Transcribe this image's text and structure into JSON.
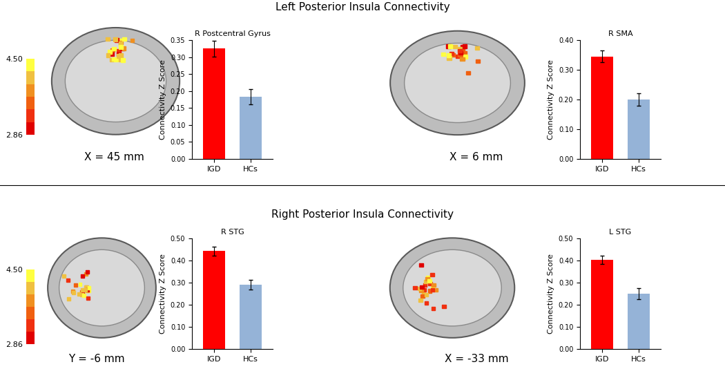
{
  "chart_data": [
    {
      "type": "bar",
      "title": "R Postcentral Gyrus",
      "categories": [
        "IGD",
        "HCs"
      ],
      "values": [
        0.325,
        0.183
      ],
      "errors": [
        0.023,
        0.022
      ],
      "colors": [
        "#ff0000",
        "#95b3d7"
      ],
      "y_label": "Connectivity Z Score",
      "ylim": [
        0,
        0.35
      ],
      "yticks": [
        {
          "value": 0,
          "label": "0.00"
        },
        {
          "value": 0.05,
          "label": "0.05"
        },
        {
          "value": 0.1,
          "label": "0.10"
        },
        {
          "value": 0.15,
          "label": "0.15"
        },
        {
          "value": 0.2,
          "label": "0.20"
        },
        {
          "value": 0.25,
          "label": "0.25"
        },
        {
          "value": 0.3,
          "label": "0.30"
        },
        {
          "value": 0.35,
          "label": "0.35"
        }
      ]
    },
    {
      "type": "bar",
      "title": "R SMA",
      "categories": [
        "IGD",
        "HCs"
      ],
      "values": [
        0.345,
        0.2
      ],
      "errors": [
        0.02,
        0.022
      ],
      "colors": [
        "#ff0000",
        "#95b3d7"
      ],
      "y_label": "Connectivity Z Score",
      "ylim": [
        0,
        0.4
      ],
      "yticks": [
        {
          "value": 0,
          "label": "0.00"
        },
        {
          "value": 0.1,
          "label": "0.10"
        },
        {
          "value": 0.2,
          "label": "0.20"
        },
        {
          "value": 0.3,
          "label": "0.30"
        },
        {
          "value": 0.4,
          "label": "0.40"
        }
      ]
    },
    {
      "type": "bar",
      "title": "R STG",
      "categories": [
        "IGD",
        "HCs"
      ],
      "values": [
        0.443,
        0.29
      ],
      "errors": [
        0.02,
        0.022
      ],
      "colors": [
        "#ff0000",
        "#95b3d7"
      ],
      "y_label": "Connectivity Z Score",
      "ylim": [
        0,
        0.5
      ],
      "yticks": [
        {
          "value": 0,
          "label": "0.00"
        },
        {
          "value": 0.1,
          "label": "0.10"
        },
        {
          "value": 0.2,
          "label": "0.20"
        },
        {
          "value": 0.3,
          "label": "0.30"
        },
        {
          "value": 0.4,
          "label": "0.40"
        },
        {
          "value": 0.5,
          "label": "0.50"
        }
      ]
    },
    {
      "type": "bar",
      "title": "L STG",
      "categories": [
        "IGD",
        "HCs"
      ],
      "values": [
        0.403,
        0.25
      ],
      "errors": [
        0.018,
        0.025
      ],
      "colors": [
        "#ff0000",
        "#95b3d7"
      ],
      "y_label": "Connectivity Z Score",
      "ylim": [
        0,
        0.5
      ],
      "yticks": [
        {
          "value": 0,
          "label": "0.00"
        },
        {
          "value": 0.1,
          "label": "0.10"
        },
        {
          "value": 0.2,
          "label": "0.20"
        },
        {
          "value": 0.3,
          "label": "0.30"
        },
        {
          "value": 0.4,
          "label": "0.40"
        },
        {
          "value": 0.5,
          "label": "0.50"
        }
      ]
    }
  ],
  "sections": [
    {
      "title": "Left Posterior Insula Connectivity",
      "colorbar": {
        "range": [
          2.86,
          4.5
        ],
        "ticks": [
          2.86,
          {
            "value": 4.5,
            "label": "4.50"
          }
        ]
      },
      "slices": [
        "X = 45 mm",
        "X = 6 mm"
      ]
    },
    {
      "title": "Right Posterior Insula Connectivity",
      "colorbar": {
        "range": [
          2.86,
          4.5
        ],
        "ticks": [
          2.86,
          {
            "value": 4.5,
            "label": "4.50"
          }
        ]
      },
      "slices": [
        "Y = -6 mm",
        "X = -33 mm"
      ]
    }
  ]
}
